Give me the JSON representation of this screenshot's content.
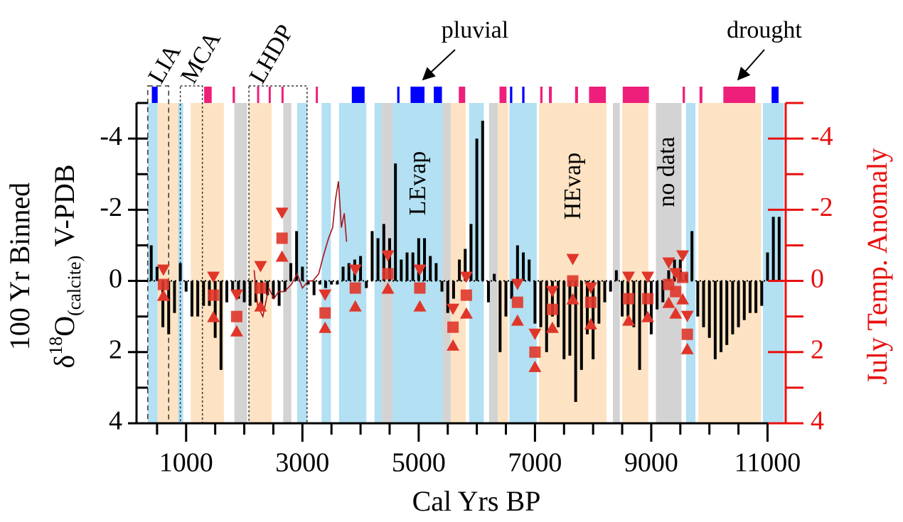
{
  "chart_data": {
    "type": "bar",
    "xlabel": "Cal Yrs BP",
    "ylabel": {
      "line1": "100 Yr Binned",
      "delta": "δ",
      "iso": "18",
      "element": "O",
      "sub": "(calcite)",
      "unit": "V-PDB"
    },
    "y2label": "July Temp. Anomaly",
    "xlim": [
      0,
      11300
    ],
    "ylim": [
      4,
      -5
    ],
    "y2lim": [
      4,
      -5
    ],
    "xticks": [
      1000,
      3000,
      5000,
      7000,
      9000,
      11000
    ],
    "xminorticks": [
      500,
      1500,
      2000,
      2500,
      3500,
      4000,
      4500,
      5500,
      6000,
      6500,
      7500,
      8000,
      8500,
      9500,
      10000,
      10500
    ],
    "yticks": [
      -4,
      -2,
      0,
      2,
      4
    ],
    "yminorticks": [
      -5,
      -3,
      -1,
      1,
      3
    ],
    "y2ticks": [
      -4,
      -2,
      0,
      2,
      4
    ],
    "y2minorticks": [
      -5,
      -3,
      -1,
      1,
      3
    ],
    "axis_color": "#000000",
    "y2_color": "#e8100f",
    "bands": [
      {
        "x0": 340,
        "x1": 510,
        "color": "#b3e0f2"
      },
      {
        "x0": 510,
        "x1": 860,
        "color": "#fde3c3"
      },
      {
        "x0": 860,
        "x1": 950,
        "color": "#b3e0f2"
      },
      {
        "x0": 1080,
        "x1": 1650,
        "color": "#fde3c3"
      },
      {
        "x0": 1830,
        "x1": 2050,
        "color": "#d3d3d3"
      },
      {
        "x0": 2080,
        "x1": 2470,
        "color": "#fde3c3"
      },
      {
        "x0": 2670,
        "x1": 2810,
        "color": "#d3d3d3"
      },
      {
        "x0": 2910,
        "x1": 3080,
        "color": "#b3e0f2"
      },
      {
        "x0": 3330,
        "x1": 3490,
        "color": "#b3e0f2"
      },
      {
        "x0": 3630,
        "x1": 4100,
        "color": "#b3e0f2"
      },
      {
        "x0": 4240,
        "x1": 4370,
        "color": "#b3e0f2"
      },
      {
        "x0": 4370,
        "x1": 4550,
        "color": "#d3d3d3"
      },
      {
        "x0": 4550,
        "x1": 5410,
        "color": "#b3e0f2"
      },
      {
        "x0": 5410,
        "x1": 5550,
        "color": "#d3d3d3"
      },
      {
        "x0": 5550,
        "x1": 5810,
        "color": "#fde3c3"
      },
      {
        "x0": 5870,
        "x1": 6120,
        "color": "#b3e0f2"
      },
      {
        "x0": 6210,
        "x1": 6360,
        "color": "#d3d3d3"
      },
      {
        "x0": 6360,
        "x1": 6540,
        "color": "#fde3c3"
      },
      {
        "x0": 6560,
        "x1": 7030,
        "color": "#b3e0f2"
      },
      {
        "x0": 7070,
        "x1": 8230,
        "color": "#fde3c3"
      },
      {
        "x0": 8340,
        "x1": 8460,
        "color": "#d3d3d3"
      },
      {
        "x0": 8500,
        "x1": 8950,
        "color": "#fde3c3"
      },
      {
        "x0": 9080,
        "x1": 9520,
        "color": "#d3d3d3"
      },
      {
        "x0": 9600,
        "x1": 9760,
        "color": "#b3e0f2"
      },
      {
        "x0": 9810,
        "x1": 10890,
        "color": "#fde3c3"
      },
      {
        "x0": 10920,
        "x1": 11280,
        "color": "#b3e0f2"
      }
    ],
    "events": [
      {
        "x0": 410,
        "x1": 510,
        "color": "#0000ff"
      },
      {
        "x0": 1310,
        "x1": 1440,
        "color": "#ee1f7a"
      },
      {
        "x0": 1800,
        "x1": 1840,
        "color": "#ee1f7a"
      },
      {
        "x0": 2220,
        "x1": 2250,
        "color": "#ee1f7a"
      },
      {
        "x0": 2420,
        "x1": 2450,
        "color": "#ee1f7a"
      },
      {
        "x0": 2640,
        "x1": 2670,
        "color": "#ee1f7a"
      },
      {
        "x0": 3230,
        "x1": 3260,
        "color": "#ee1f7a"
      },
      {
        "x0": 3850,
        "x1": 4070,
        "color": "#0000ff"
      },
      {
        "x0": 4630,
        "x1": 4670,
        "color": "#0000ff"
      },
      {
        "x0": 4860,
        "x1": 5100,
        "color": "#0000ff"
      },
      {
        "x0": 5260,
        "x1": 5400,
        "color": "#0000ff"
      },
      {
        "x0": 5690,
        "x1": 5800,
        "color": "#ee1f7a"
      },
      {
        "x0": 6390,
        "x1": 6510,
        "color": "#ee1f7a"
      },
      {
        "x0": 6570,
        "x1": 6610,
        "color": "#0000ff"
      },
      {
        "x0": 6780,
        "x1": 6820,
        "color": "#0000ff"
      },
      {
        "x0": 7090,
        "x1": 7130,
        "color": "#ee1f7a"
      },
      {
        "x0": 7240,
        "x1": 7290,
        "color": "#ee1f7a"
      },
      {
        "x0": 7690,
        "x1": 7740,
        "color": "#ee1f7a"
      },
      {
        "x0": 7930,
        "x1": 8220,
        "color": "#ee1f7a"
      },
      {
        "x0": 8510,
        "x1": 8960,
        "color": "#ee1f7a"
      },
      {
        "x0": 9540,
        "x1": 9580,
        "color": "#ee1f7a"
      },
      {
        "x0": 9830,
        "x1": 9880,
        "color": "#ee1f7a"
      },
      {
        "x0": 10240,
        "x1": 10790,
        "color": "#ee1f7a"
      },
      {
        "x0": 11070,
        "x1": 11190,
        "color": "#0000ff"
      }
    ],
    "periods": [
      {
        "label": "LIA",
        "x0": 340,
        "x1": 700,
        "style": "dashed"
      },
      {
        "label": "MCA",
        "x0": 900,
        "x1": 1280,
        "style": "dotted"
      },
      {
        "label": "LHDP",
        "x0": 2080,
        "x1": 3080,
        "style": "dotted"
      }
    ],
    "annotations": {
      "pluvial": "pluvial",
      "drought": "drought",
      "levap": "LEvap",
      "hevap": "HEvap",
      "nodata": "no data"
    },
    "series": [
      {
        "type": "bar",
        "color": "#000000",
        "x": [
          400,
          500,
          600,
          700,
          800,
          900,
          1000,
          1100,
          1200,
          1300,
          1400,
          1500,
          1600,
          1700,
          1800,
          1900,
          2000,
          2100,
          2200,
          2300,
          2400,
          2500,
          2600,
          2700,
          2800,
          2900,
          3000,
          3100,
          3200,
          3300,
          3400,
          3500,
          3600,
          3700,
          3800,
          3900,
          4000,
          4100,
          4200,
          4300,
          4400,
          4500,
          4600,
          4700,
          4800,
          4900,
          5000,
          5100,
          5200,
          5300,
          5400,
          5500,
          5600,
          5700,
          5800,
          5900,
          6000,
          6100,
          6200,
          6300,
          6400,
          6500,
          6600,
          6700,
          6800,
          6900,
          7000,
          7100,
          7200,
          7300,
          7400,
          7500,
          7600,
          7700,
          7800,
          7900,
          8000,
          8100,
          8200,
          8300,
          8400,
          8500,
          8600,
          8700,
          8800,
          8900,
          9000,
          9100,
          9200,
          9300,
          9400,
          9500,
          9600,
          9700,
          9800,
          9900,
          10000,
          10100,
          10200,
          10300,
          10400,
          10500,
          10600,
          10700,
          10800,
          10900,
          11000,
          11100,
          11200
        ],
        "values": [
          -1.0,
          -0.4,
          1.3,
          1.5,
          0.9,
          -0.5,
          0.3,
          1.0,
          1.0,
          0.7,
          0.7,
          1.6,
          2.5,
          0.6,
          0.3,
          0.5,
          0.6,
          0.7,
          0.6,
          0.7,
          0.4,
          0.5,
          0.7,
          0.3,
          -0.5,
          -1.4,
          -0.4,
          0.1,
          0.4,
          0.1,
          0.2,
          0.1,
          0.1,
          -0.4,
          -0.5,
          -0.6,
          -0.7,
          0.2,
          -1.4,
          -1.2,
          -1.6,
          -1.2,
          -3.3,
          -0.6,
          -0.8,
          -0.8,
          -1.2,
          -1.2,
          -0.7,
          -0.5,
          0.3,
          0.9,
          0.5,
          -0.6,
          -0.9,
          -1.6,
          -4.0,
          -4.5,
          0.6,
          -0.2,
          2.0,
          1.0,
          0.5,
          -1.0,
          -0.8,
          -0.6,
          1.2,
          1.3,
          2.0,
          1.0,
          1.3,
          2.2,
          2.1,
          3.4,
          2.5,
          1.5,
          2.2,
          1.2,
          0.6,
          0.3,
          -0.3,
          1.0,
          1.0,
          1.3,
          2.5,
          1.0,
          1.5,
          0.8,
          0.6,
          -0.3,
          -0.6,
          -0.6,
          -0.2,
          -1.4,
          1.0,
          1.3,
          1.6,
          2.2,
          2.0,
          1.8,
          1.5,
          1.3,
          1.1,
          0.9,
          0.9,
          0.7,
          -0.8,
          -1.8,
          -1.8
        ]
      },
      {
        "type": "line",
        "axis": "y2",
        "color": "#a8141c",
        "x": [
          2170,
          2230,
          2320,
          2420,
          2510,
          2590,
          2690,
          2810,
          2910,
          3000,
          3100,
          3180,
          3280,
          3360,
          3450,
          3520,
          3570,
          3620,
          3670,
          3720,
          3760
        ],
        "values": [
          -0.3,
          0.7,
          1.0,
          0.2,
          0.5,
          0.3,
          0.3,
          0.1,
          -0.2,
          0.2,
          0,
          0,
          -0.2,
          -0.7,
          -1.2,
          -1.5,
          -2.3,
          -2.8,
          -1.5,
          -1.9,
          -1.1
        ]
      },
      {
        "type": "range",
        "axis": "y2",
        "color": "#e0362a",
        "x": [
          610,
          1470,
          1870,
          2280,
          2650,
          3390,
          3910,
          4470,
          5020,
          5590,
          5820,
          6700,
          7000,
          7300,
          7650,
          7960,
          8610,
          8940,
          9300,
          9420,
          9540,
          9620
        ],
        "values": [
          0.1,
          0.4,
          1.0,
          0.2,
          -1.2,
          0.9,
          0.2,
          -0.2,
          0.2,
          1.3,
          0.4,
          0.6,
          2.0,
          0.8,
          0,
          0.6,
          0.5,
          0.5,
          0.1,
          0.3,
          -0.1,
          1.5
        ],
        "min": [
          -0.3,
          -0.1,
          0.4,
          -0.4,
          -1.9,
          0.4,
          -0.3,
          -0.7,
          -0.3,
          0.8,
          -0.1,
          0.1,
          1.5,
          0.3,
          -0.6,
          0.2,
          -0.1,
          -0.1,
          -0.5,
          -0.2,
          -0.7,
          1.0
        ],
        "max": [
          0.4,
          1.0,
          1.4,
          0.7,
          -0.7,
          1.3,
          0.7,
          0.2,
          0.7,
          1.8,
          0.9,
          1.1,
          2.4,
          1.3,
          0.5,
          1.2,
          1.1,
          1.0,
          0.6,
          0.9,
          0.5,
          1.9
        ]
      }
    ]
  }
}
